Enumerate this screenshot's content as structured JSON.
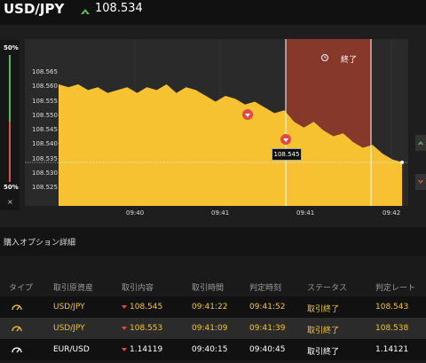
{
  "header": {
    "pair": "USD/JPY",
    "price": "108.534"
  },
  "chart_panel": {
    "pct_top": "50%",
    "pct_bottom": "50%",
    "close_symbol": "×",
    "end_label": "終了",
    "current_tag": "108.545"
  },
  "chart_data": {
    "type": "area",
    "y_ticks": [
      "108.565",
      "108.560",
      "108.555",
      "108.550",
      "108.545",
      "108.540",
      "108.535",
      "108.530",
      "108.525"
    ],
    "x_ticks": [
      "09:40",
      "09:41",
      "09:41",
      "09:42"
    ],
    "series": [
      {
        "values": [
          108.561,
          108.56,
          108.561,
          108.559,
          108.56,
          108.558,
          108.559,
          108.56,
          108.558,
          108.56,
          108.559,
          108.561,
          108.558,
          108.56,
          108.559,
          108.557,
          108.555,
          108.557,
          108.556,
          108.554,
          108.555,
          108.553,
          108.551,
          108.552,
          108.548,
          108.546,
          108.548,
          108.545,
          108.543,
          108.544,
          108.541,
          108.539,
          108.54,
          108.537,
          108.535,
          108.534
        ]
      }
    ]
  },
  "section": {
    "title": "購入オプション詳細"
  },
  "table": {
    "headers": [
      "タイプ",
      "取引原資産",
      "取引内容",
      "取引時間",
      "判定時刻",
      "ステータス",
      "判定レート"
    ],
    "rows": [
      {
        "asset": "USD/JPY",
        "trade": "108.545",
        "time": "09:41:22",
        "judge": "09:41:52",
        "status": "取引終了",
        "rate": "108.543",
        "bg": "#111111",
        "color": "#f3c623"
      },
      {
        "asset": "USD/JPY",
        "trade": "108.553",
        "time": "09:41:09",
        "judge": "09:41:39",
        "status": "取引終了",
        "rate": "108.538",
        "bg": "#2b2b2b",
        "color": "#f3c623"
      },
      {
        "asset": "EUR/USD",
        "trade": "1.14119",
        "time": "09:40:15",
        "judge": "09:40:45",
        "status": "取引終了",
        "rate": "1.14121",
        "bg": "#111111",
        "color": "#ffffff"
      }
    ]
  }
}
